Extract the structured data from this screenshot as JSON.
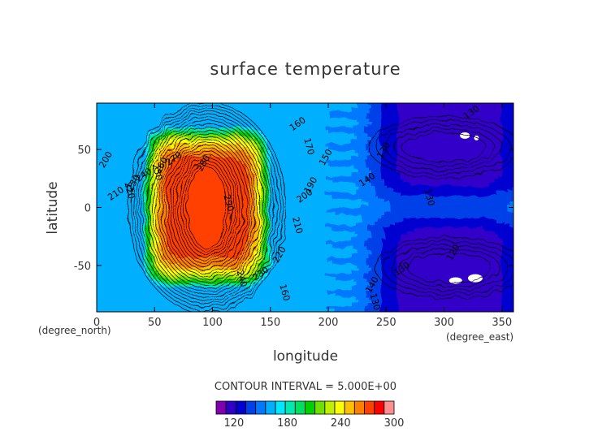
{
  "chart_data": {
    "type": "heatmap",
    "title": "surface temperature",
    "xlabel": "longitude",
    "ylabel": "latitude",
    "x_unit": "(degree_east)",
    "y_unit": "(degree_north)",
    "xlim": [
      0,
      360
    ],
    "ylim": [
      -90,
      90
    ],
    "x_ticks": [
      0,
      50,
      100,
      150,
      200,
      250,
      300,
      350
    ],
    "y_ticks": [
      -50,
      0,
      50
    ],
    "contour_interval_text": "CONTOUR INTERVAL = 5.000E+00",
    "colorbar": {
      "min": 100,
      "max": 300,
      "ticks": [
        120,
        180,
        240,
        300
      ],
      "colors": [
        "#8000b0",
        "#3000c8",
        "#0000d0",
        "#0040e8",
        "#0078ff",
        "#00b0ff",
        "#00e8ff",
        "#00e8b0",
        "#00e060",
        "#00d000",
        "#70e000",
        "#c0f000",
        "#ffff00",
        "#ffc000",
        "#ff8000",
        "#ff4000",
        "#ff0000",
        "#ff9090"
      ]
    },
    "contour_labels": [
      {
        "text": "280.",
        "lon": 95,
        "lat": 38
      },
      {
        "text": "290.",
        "lon": 112,
        "lat": 2
      },
      {
        "text": "270",
        "lon": 68,
        "lat": 40
      },
      {
        "text": "260",
        "lon": 58,
        "lat": 35
      },
      {
        "text": "250",
        "lon": 50,
        "lat": 30
      },
      {
        "text": "240",
        "lon": 42,
        "lat": 26
      },
      {
        "text": "230",
        "lon": 34,
        "lat": 20
      },
      {
        "text": "220",
        "lon": 26,
        "lat": 14
      },
      {
        "text": "210",
        "lon": 18,
        "lat": 10
      },
      {
        "text": "200",
        "lon": 10,
        "lat": 40
      },
      {
        "text": "240",
        "lon": 123,
        "lat": -62
      },
      {
        "text": "230",
        "lon": 143,
        "lat": -59
      },
      {
        "text": "220",
        "lon": 160,
        "lat": -42
      },
      {
        "text": "210",
        "lon": 171,
        "lat": -16
      },
      {
        "text": "200",
        "lon": 181,
        "lat": 8
      },
      {
        "text": "190",
        "lon": 187,
        "lat": 18
      },
      {
        "text": "170",
        "lon": 181,
        "lat": 52
      },
      {
        "text": "160",
        "lon": 175,
        "lat": 70
      },
      {
        "text": "150",
        "lon": 200,
        "lat": 42
      },
      {
        "text": "160",
        "lon": 160,
        "lat": -74
      },
      {
        "text": "140",
        "lon": 235,
        "lat": 22
      },
      {
        "text": "130",
        "lon": 250,
        "lat": 48
      },
      {
        "text": "130",
        "lon": 285,
        "lat": 8
      },
      {
        "text": "130",
        "lon": 325,
        "lat": 80
      },
      {
        "text": "140",
        "lon": 240,
        "lat": -68
      },
      {
        "text": "130",
        "lon": 238,
        "lat": -82
      },
      {
        "text": "130",
        "lon": 265,
        "lat": -55
      },
      {
        "text": "120",
        "lon": 310,
        "lat": -40
      }
    ]
  }
}
